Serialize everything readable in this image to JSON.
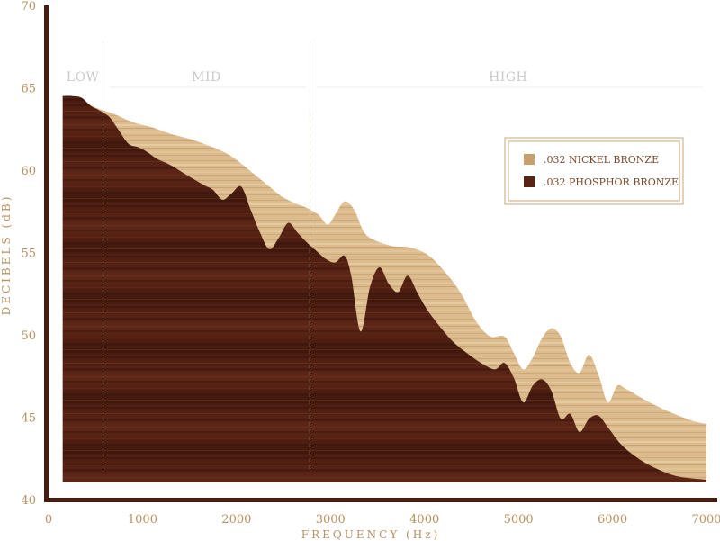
{
  "chart_data": {
    "type": "area",
    "title": "",
    "xlabel": "FREQUENCY (Hz)",
    "ylabel": "DECIBELS (dB)",
    "xlim": [
      0,
      7000
    ],
    "ylim": [
      40,
      70
    ],
    "x_ticks": [
      "0",
      "1000",
      "2000",
      "3000",
      "4000",
      "5000",
      "6000",
      "7000"
    ],
    "y_ticks": [
      "40",
      "45",
      "50",
      "55",
      "60",
      "65",
      "70"
    ],
    "grid": false,
    "legend_position": "top-right",
    "bands": [
      {
        "label": "LOW",
        "start": 150,
        "end": 580
      },
      {
        "label": "MID",
        "start": 580,
        "end": 2780
      },
      {
        "label": "HIGH",
        "start": 2780,
        "end": 7000
      }
    ],
    "band_dividers": [
      580,
      2780
    ],
    "series": [
      {
        "name": ".032 NICKEL BRONZE",
        "color": "#d7b487",
        "points": [
          [
            150,
            64.5
          ],
          [
            300,
            64.4
          ],
          [
            500,
            63.8
          ],
          [
            700,
            63.4
          ],
          [
            900,
            62.9
          ],
          [
            1100,
            62.6
          ],
          [
            1300,
            62.2
          ],
          [
            1500,
            61.9
          ],
          [
            1700,
            61.5
          ],
          [
            1900,
            61.0
          ],
          [
            2050,
            60.4
          ],
          [
            2200,
            59.7
          ],
          [
            2350,
            59.0
          ],
          [
            2480,
            58.4
          ],
          [
            2620,
            58.0
          ],
          [
            2750,
            57.7
          ],
          [
            2870,
            57.3
          ],
          [
            2970,
            56.7
          ],
          [
            3050,
            57.3
          ],
          [
            3150,
            58.1
          ],
          [
            3250,
            57.6
          ],
          [
            3350,
            56.3
          ],
          [
            3450,
            55.8
          ],
          [
            3650,
            55.4
          ],
          [
            3850,
            55.3
          ],
          [
            4050,
            54.8
          ],
          [
            4250,
            53.6
          ],
          [
            4400,
            52.4
          ],
          [
            4550,
            50.8
          ],
          [
            4700,
            49.9
          ],
          [
            4850,
            49.9
          ],
          [
            4950,
            48.9
          ],
          [
            5050,
            47.9
          ],
          [
            5150,
            48.6
          ],
          [
            5250,
            49.8
          ],
          [
            5350,
            50.4
          ],
          [
            5450,
            49.9
          ],
          [
            5550,
            48.3
          ],
          [
            5650,
            47.7
          ],
          [
            5750,
            48.8
          ],
          [
            5850,
            47.6
          ],
          [
            5950,
            45.9
          ],
          [
            6050,
            46.9
          ],
          [
            6150,
            46.7
          ],
          [
            6300,
            46.2
          ],
          [
            6500,
            45.6
          ],
          [
            6700,
            45.1
          ],
          [
            6900,
            44.7
          ],
          [
            7000,
            44.6
          ]
        ]
      },
      {
        "name": ".032 PHOSPHOR BRONZE",
        "color": "#5a2414",
        "points": [
          [
            150,
            64.5
          ],
          [
            250,
            64.5
          ],
          [
            350,
            64.4
          ],
          [
            450,
            63.9
          ],
          [
            550,
            63.6
          ],
          [
            650,
            63.2
          ],
          [
            750,
            62.4
          ],
          [
            850,
            61.6
          ],
          [
            950,
            61.4
          ],
          [
            1050,
            61.1
          ],
          [
            1150,
            60.7
          ],
          [
            1300,
            60.3
          ],
          [
            1500,
            59.6
          ],
          [
            1650,
            59.1
          ],
          [
            1750,
            58.8
          ],
          [
            1850,
            58.2
          ],
          [
            1950,
            58.6
          ],
          [
            2050,
            59.0
          ],
          [
            2150,
            57.6
          ],
          [
            2250,
            56.2
          ],
          [
            2350,
            55.2
          ],
          [
            2450,
            55.9
          ],
          [
            2550,
            56.8
          ],
          [
            2650,
            56.2
          ],
          [
            2750,
            55.6
          ],
          [
            2850,
            55.1
          ],
          [
            2950,
            54.6
          ],
          [
            3050,
            54.4
          ],
          [
            3150,
            54.8
          ],
          [
            3220,
            53.6
          ],
          [
            3320,
            50.2
          ],
          [
            3420,
            52.9
          ],
          [
            3520,
            54.1
          ],
          [
            3620,
            53.1
          ],
          [
            3720,
            52.6
          ],
          [
            3820,
            53.6
          ],
          [
            3920,
            52.6
          ],
          [
            4020,
            51.6
          ],
          [
            4150,
            50.6
          ],
          [
            4300,
            49.6
          ],
          [
            4450,
            48.9
          ],
          [
            4600,
            48.3
          ],
          [
            4750,
            47.9
          ],
          [
            4850,
            48.3
          ],
          [
            4950,
            47.4
          ],
          [
            5050,
            45.9
          ],
          [
            5150,
            46.9
          ],
          [
            5250,
            47.3
          ],
          [
            5350,
            46.6
          ],
          [
            5450,
            44.9
          ],
          [
            5550,
            45.2
          ],
          [
            5650,
            44.1
          ],
          [
            5750,
            44.9
          ],
          [
            5850,
            45.1
          ],
          [
            5950,
            44.4
          ],
          [
            6100,
            43.3
          ],
          [
            6300,
            42.4
          ],
          [
            6500,
            41.8
          ],
          [
            6700,
            41.4
          ],
          [
            7000,
            41.2
          ]
        ]
      }
    ]
  }
}
